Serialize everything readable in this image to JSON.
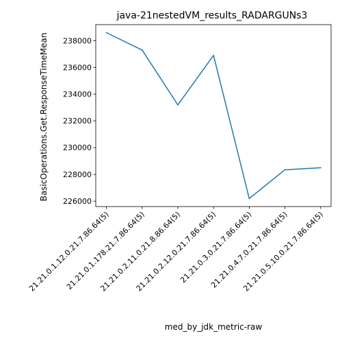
{
  "chart_data": {
    "type": "line",
    "title": "java-21nestedVM_results_RADARGUNs3",
    "xlabel": "med_by_jdk_metric-raw",
    "ylabel": "BasicOperations.Get.ResponseTimeMean",
    "categories": [
      "21.21.0.1.12.0.21.7.86.64(5)",
      "21.21.0.1.178.21.7.86.64(5)",
      "21.21.0.2.11.0.21.8.86.64(5)",
      "21.21.0.2.12.0.21.7.86.64(5)",
      "21.21.0.3.0.21.7.86.64(5)",
      "21.21.0.4.7.0.21.7.86.64(5)",
      "21.21.0.5.10.0.21.7.86.64(5)"
    ],
    "series": [
      {
        "values": [
          238600,
          237300,
          233200,
          236900,
          226200,
          228350,
          228500
        ],
        "color": "#1f77b4"
      }
    ],
    "yticks": [
      "226000",
      "228000",
      "230000",
      "232000",
      "234000",
      "236000",
      "238000"
    ],
    "ylim": [
      225600,
      239200
    ],
    "grid": false,
    "legend": "none"
  }
}
